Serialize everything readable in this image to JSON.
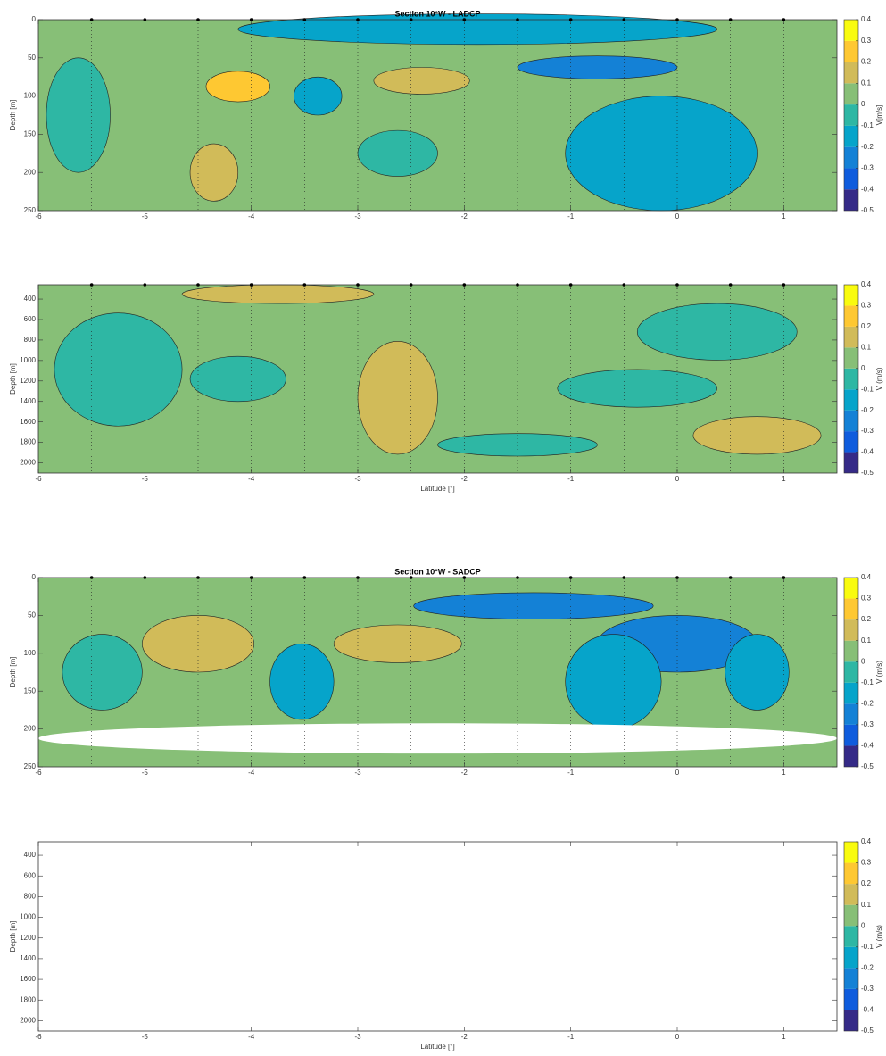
{
  "chart_data": [
    {
      "type": "contour",
      "title": "Section 10°W - LADCP",
      "ylabel": "Depth [m]",
      "colorbar_label": "V[m/s]",
      "xlim": [
        -6,
        1.5
      ],
      "xticks": [
        -6,
        -5,
        -4,
        -3,
        -2,
        -1,
        0,
        1
      ],
      "ylim": [
        0,
        250
      ],
      "yticks": [
        0,
        50,
        100,
        150,
        200,
        250
      ],
      "y_reversed": true,
      "stations": [
        -5.5,
        -5,
        -4.5,
        -4,
        -3.5,
        -3,
        -2.5,
        -2,
        -1.5,
        -1,
        -0.5,
        0,
        0.5,
        1
      ],
      "clim": [
        -0.5,
        0.4
      ],
      "cticks": [
        0.4,
        0.3,
        0.2,
        0.1,
        0,
        -0.1,
        -0.2,
        -0.3,
        -0.4,
        -0.5
      ],
      "colormap": [
        "#352a87",
        "#0f5cdd",
        "#1481d6",
        "#06a4ca",
        "#2eb7a4",
        "#87bf77",
        "#d1bb59",
        "#fec832",
        "#f9fb0e"
      ]
    },
    {
      "type": "contour",
      "xlabel": "Latitude [°]",
      "ylabel": "Depth [m]",
      "colorbar_label": "V (m/s)",
      "xlim": [
        -6,
        1.5
      ],
      "xticks": [
        -6,
        -5,
        -4,
        -3,
        -2,
        -1,
        0,
        1
      ],
      "ylim": [
        260,
        2100
      ],
      "yticks": [
        400,
        600,
        800,
        1000,
        1200,
        1400,
        1600,
        1800,
        2000
      ],
      "y_reversed": true,
      "stations": [
        -5.5,
        -5,
        -4.5,
        -4,
        -3.5,
        -3,
        -2.5,
        -2,
        -1.5,
        -1,
        -0.5,
        0,
        0.5,
        1
      ],
      "clim": [
        -0.5,
        0.4
      ],
      "cticks": [
        0.4,
        0.3,
        0.2,
        0.1,
        0,
        -0.1,
        -0.2,
        -0.3,
        -0.4,
        -0.5
      ],
      "colormap": [
        "#352a87",
        "#0f5cdd",
        "#1481d6",
        "#06a4ca",
        "#2eb7a4",
        "#87bf77",
        "#d1bb59",
        "#fec832",
        "#f9fb0e"
      ]
    },
    {
      "type": "contour",
      "title": "Section 10°W - SADCP",
      "ylabel": "Depth [m]",
      "colorbar_label": "V (m/s)",
      "xlim": [
        -6,
        1.5
      ],
      "xticks": [
        -6,
        -5,
        -4,
        -3,
        -2,
        -1,
        0,
        1
      ],
      "ylim": [
        0,
        250
      ],
      "yticks": [
        0,
        50,
        100,
        150,
        200,
        250
      ],
      "y_reversed": true,
      "stations": [
        -5.5,
        -5,
        -4.5,
        -4,
        -3.5,
        -3,
        -2.5,
        -2,
        -1.5,
        -1,
        -0.5,
        0,
        0.5,
        1
      ],
      "clim": [
        -0.5,
        0.4
      ],
      "cticks": [
        0.4,
        0.3,
        0.2,
        0.1,
        0,
        -0.1,
        -0.2,
        -0.3,
        -0.4,
        -0.5
      ],
      "colormap": [
        "#352a87",
        "#0f5cdd",
        "#1481d6",
        "#06a4ca",
        "#2eb7a4",
        "#87bf77",
        "#d1bb59",
        "#fec832",
        "#f9fb0e"
      ]
    },
    {
      "type": "empty",
      "xlabel": "Latitude [°]",
      "ylabel": "Depth [m]",
      "colorbar_label": "V (m/s)",
      "xlim": [
        -6,
        1.5
      ],
      "xticks": [
        -6,
        -5,
        -4,
        -3,
        -2,
        -1,
        0,
        1
      ],
      "ylim": [
        270,
        2100
      ],
      "yticks": [
        400,
        600,
        800,
        1000,
        1200,
        1400,
        1600,
        1800,
        2000
      ],
      "y_reversed": true,
      "clim": [
        -0.5,
        0.4
      ],
      "cticks": [
        0.4,
        0.3,
        0.2,
        0.1,
        0,
        -0.1,
        -0.2,
        -0.3,
        -0.4,
        -0.5
      ],
      "colormap": [
        "#352a87",
        "#0f5cdd",
        "#1481d6",
        "#06a4ca",
        "#2eb7a4",
        "#87bf77",
        "#d1bb59",
        "#fec832",
        "#f9fb0e"
      ]
    }
  ]
}
